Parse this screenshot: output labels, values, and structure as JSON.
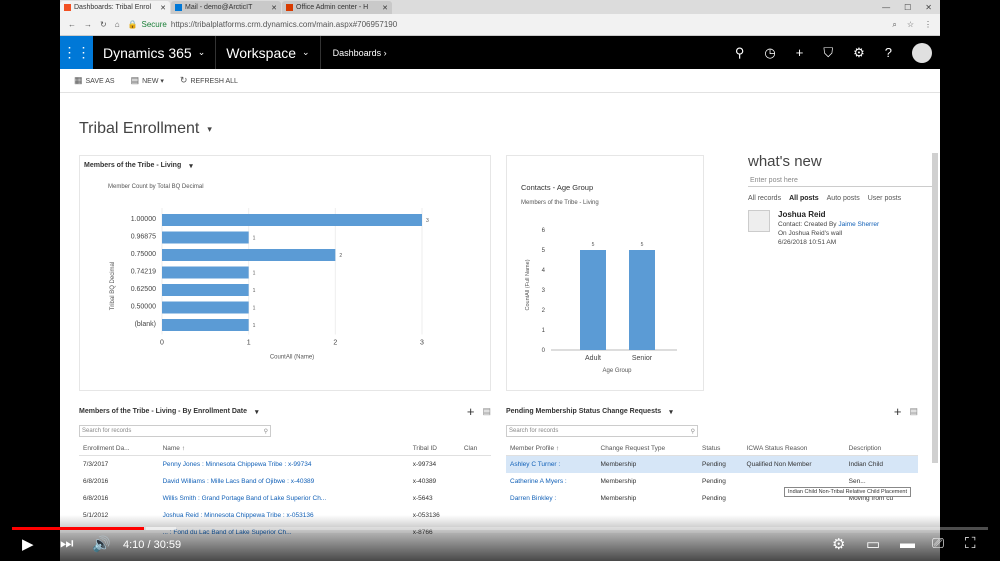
{
  "browser": {
    "tabs": [
      "Dashboards: Tribal Enrol",
      "Mail - demo@ArcticIT",
      "Office Admin center - H"
    ],
    "secure": "Secure",
    "url": "https://tribalplatforms.crm.dynamics.com/main.aspx#706957190"
  },
  "nav": {
    "brand": "Dynamics 365",
    "workspace": "Workspace",
    "crumb": "Dashboards"
  },
  "cmd": {
    "save_as": "SAVE AS",
    "new": "NEW",
    "refresh": "REFRESH ALL"
  },
  "dashboard_title": "Tribal Enrollment",
  "chart1": {
    "title": "Members of the Tribe - Living",
    "subtitle": "Member Count by Total BQ Decimal",
    "ylabel": "Tribal BQ Decimal",
    "xlabel": "CountAll (Name)"
  },
  "chart2": {
    "title": "Contacts - Age Group",
    "subtitle": "Members of the Tribe - Living",
    "ylabel": "CountAll (Full Name)",
    "xlabel": "Age Group"
  },
  "chart_data": [
    {
      "type": "bar",
      "orientation": "horizontal",
      "categories": [
        "1.00000",
        "0.96875",
        "0.75000",
        "0.74219",
        "0.62500",
        "0.50000",
        "(blank)"
      ],
      "values": [
        3,
        1,
        2,
        1,
        1,
        1,
        1
      ],
      "xlim": [
        0,
        3
      ],
      "xticks": [
        "0",
        "1",
        "2",
        "3"
      ],
      "title": "Members of the Tribe - Living",
      "xlabel": "CountAll (Name)",
      "ylabel": "Tribal BQ Decimal"
    },
    {
      "type": "bar",
      "categories": [
        "Adult",
        "Senior"
      ],
      "values": [
        5,
        5
      ],
      "ylim": [
        0,
        6
      ],
      "yticks": [
        "0",
        "1",
        "2",
        "3",
        "4",
        "5",
        "6"
      ],
      "title": "Contacts - Age Group",
      "xlabel": "Age Group",
      "ylabel": "CountAll (Full Name)"
    }
  ],
  "whats_new": {
    "title": "what's new",
    "placeholder": "Enter post here",
    "filters": [
      "All records",
      "All posts",
      "Auto posts",
      "User posts"
    ],
    "post": {
      "name": "Joshua Reid",
      "line1": "Contact: Created By",
      "creator": "Jaime Sherrer",
      "line2": "On Joshua Reid's wall",
      "date": "6/26/2018 10:51 AM"
    }
  },
  "grid1": {
    "title": "Members of the Tribe - Living - By Enrollment Date",
    "search": "Search for records",
    "columns": [
      "Enrollment Da...",
      "Name ↑",
      "Tribal ID",
      "Clan"
    ],
    "rows": [
      [
        "7/3/2017",
        "Penny Jones : Minnesota Chippewa Tribe : x-99734",
        "x-99734",
        ""
      ],
      [
        "6/8/2016",
        "David Williams : Mille Lacs Band of Ojibwe : x-40389",
        "x-40389",
        ""
      ],
      [
        "6/8/2016",
        "Willis Smith : Grand Portage Band of Lake Superior Ch...",
        "x-5643",
        ""
      ],
      [
        "5/1/2012",
        "Joshua Reid : Minnesota Chippewa Tribe : x-053136",
        "x-053136",
        ""
      ],
      [
        "",
        "... : Fond du Lac Band of Lake Superior Ch...",
        "x-8766",
        ""
      ]
    ]
  },
  "grid2": {
    "title": "Pending Membership Status Change Requests",
    "search": "Search for records",
    "columns": [
      "Member Profile ↑",
      "Change Request Type",
      "Status",
      "ICWA Status Reason",
      "Description"
    ],
    "rows": [
      [
        "Ashley C Turner :",
        "Membership",
        "Pending",
        "Qualified Non Member",
        "Indian Child"
      ],
      [
        "Catherine A Myers :",
        "Membership",
        "Pending",
        "",
        "Sen..."
      ],
      [
        "Darren Binkley :",
        "Membership",
        "Pending",
        "",
        "Moving from cu"
      ]
    ],
    "tooltip": "Indian Child Non-Tribal Relative Child Placement"
  },
  "player": {
    "time": "4:10 / 30:59",
    "progress": 0.135
  }
}
